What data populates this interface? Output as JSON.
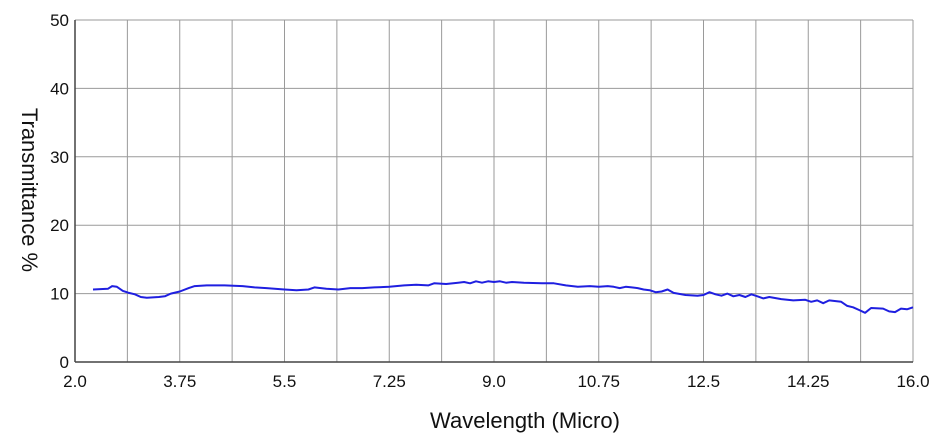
{
  "chart_data": {
    "type": "line",
    "title": "",
    "xlabel": "Wavelength (Micro)",
    "ylabel": "Transmittance %",
    "xlim": [
      2.0,
      16.0
    ],
    "ylim": [
      0,
      50
    ],
    "x_ticks": [
      "2.0",
      "3.75",
      "5.5",
      "7.25",
      "9.0",
      "10.75",
      "12.5",
      "14.25",
      "16.0"
    ],
    "y_ticks": [
      "0",
      "10",
      "20",
      "30",
      "40",
      "50"
    ],
    "grid": true,
    "legend": "none",
    "colors": {
      "line": "#1f1fe0",
      "grid": "#9a9a9a",
      "axis": "#444444"
    },
    "series": [
      {
        "x": [
          2.3,
          2.55,
          2.62,
          2.7,
          2.8,
          2.9,
          3.0,
          3.1,
          3.2,
          3.4,
          3.5,
          3.6,
          3.75,
          3.9,
          4.0,
          4.2,
          4.5,
          4.8,
          5.0,
          5.2,
          5.5,
          5.7,
          5.9,
          6.0,
          6.2,
          6.4,
          6.6,
          6.8,
          7.0,
          7.25,
          7.5,
          7.7,
          7.9,
          8.0,
          8.2,
          8.4,
          8.5,
          8.6,
          8.7,
          8.8,
          8.9,
          9.0,
          9.1,
          9.2,
          9.3,
          9.5,
          9.8,
          10.0,
          10.2,
          10.4,
          10.6,
          10.75,
          10.9,
          11.0,
          11.1,
          11.2,
          11.3,
          11.4,
          11.5,
          11.6,
          11.7,
          11.8,
          11.9,
          12.0,
          12.2,
          12.4,
          12.5,
          12.6,
          12.7,
          12.8,
          12.9,
          13.0,
          13.1,
          13.2,
          13.3,
          13.4,
          13.5,
          13.6,
          13.8,
          14.0,
          14.2,
          14.3,
          14.4,
          14.5,
          14.6,
          14.8,
          14.9,
          15.0,
          15.1,
          15.2,
          15.3,
          15.5,
          15.6,
          15.7,
          15.8,
          15.9,
          16.0
        ],
        "y": [
          10.6,
          10.7,
          11.1,
          11.0,
          10.4,
          10.1,
          9.9,
          9.5,
          9.4,
          9.5,
          9.6,
          10.0,
          10.3,
          10.8,
          11.1,
          11.2,
          11.2,
          11.1,
          10.9,
          10.8,
          10.6,
          10.5,
          10.6,
          10.9,
          10.7,
          10.6,
          10.8,
          10.8,
          10.9,
          11.0,
          11.2,
          11.3,
          11.2,
          11.5,
          11.4,
          11.6,
          11.7,
          11.5,
          11.8,
          11.6,
          11.8,
          11.7,
          11.8,
          11.6,
          11.7,
          11.6,
          11.5,
          11.5,
          11.2,
          11.0,
          11.1,
          11.0,
          11.1,
          11.0,
          10.8,
          11.0,
          10.9,
          10.8,
          10.6,
          10.5,
          10.2,
          10.3,
          10.6,
          10.1,
          9.8,
          9.7,
          9.8,
          10.2,
          9.9,
          9.7,
          10.0,
          9.6,
          9.8,
          9.5,
          9.9,
          9.6,
          9.3,
          9.5,
          9.2,
          9.0,
          9.1,
          8.8,
          9.0,
          8.6,
          9.0,
          8.8,
          8.2,
          8.0,
          7.6,
          7.2,
          7.9,
          7.8,
          7.4,
          7.3,
          7.8,
          7.7,
          8.0
        ]
      }
    ]
  }
}
